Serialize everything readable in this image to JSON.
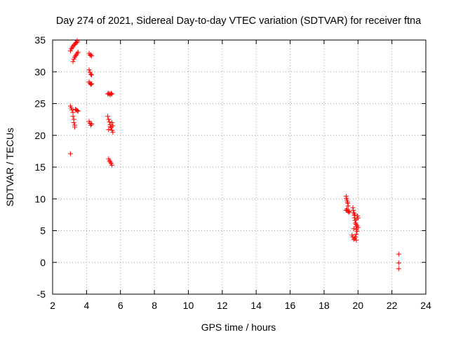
{
  "chart_data": {
    "type": "scatter",
    "title": "Day 274 of 2021, Sidereal Day-to-day VTEC variation (SDTVAR) for receiver ftna",
    "xlabel": "GPS time / hours",
    "ylabel": "SDTVAR / TECUs",
    "xlim": [
      2,
      24
    ],
    "ylim": [
      -5,
      35
    ],
    "x_ticks": [
      2,
      4,
      6,
      8,
      10,
      12,
      14,
      16,
      18,
      20,
      22,
      24
    ],
    "y_ticks": [
      -5,
      0,
      5,
      10,
      15,
      20,
      25,
      30,
      35
    ],
    "x_tick_labels": [
      "2",
      "4",
      "6",
      "8",
      "10",
      "12",
      "14",
      "16",
      "18",
      "20",
      "22",
      "24"
    ],
    "y_tick_labels": [
      "-5",
      "0",
      "5",
      "10",
      "15",
      "20",
      "25",
      "30",
      "35"
    ],
    "grid": true,
    "marker": "+",
    "marker_color": "#ff0000",
    "series": [
      {
        "name": "SDTVAR",
        "points": [
          [
            3.05,
            17.1
          ],
          [
            3.05,
            24.6
          ],
          [
            3.1,
            24.3
          ],
          [
            3.15,
            24.0
          ],
          [
            3.2,
            23.6
          ],
          [
            3.2,
            23.0
          ],
          [
            3.25,
            22.5
          ],
          [
            3.25,
            22.0
          ],
          [
            3.3,
            21.6
          ],
          [
            3.3,
            21.3
          ],
          [
            3.35,
            24.1
          ],
          [
            3.4,
            24.0
          ],
          [
            3.45,
            23.9
          ],
          [
            3.5,
            23.8
          ],
          [
            3.05,
            33.3
          ],
          [
            3.1,
            33.6
          ],
          [
            3.15,
            33.8
          ],
          [
            3.2,
            34.0
          ],
          [
            3.25,
            34.2
          ],
          [
            3.3,
            34.3
          ],
          [
            3.35,
            34.5
          ],
          [
            3.4,
            34.6
          ],
          [
            3.45,
            34.9
          ],
          [
            3.45,
            34.7
          ],
          [
            3.2,
            31.6
          ],
          [
            3.25,
            32.0
          ],
          [
            3.3,
            32.3
          ],
          [
            3.35,
            32.5
          ],
          [
            3.4,
            32.7
          ],
          [
            3.45,
            32.9
          ],
          [
            3.5,
            33.1
          ],
          [
            4.15,
            32.9
          ],
          [
            4.2,
            32.6
          ],
          [
            4.25,
            32.7
          ],
          [
            4.3,
            32.5
          ],
          [
            4.15,
            30.3
          ],
          [
            4.2,
            29.9
          ],
          [
            4.25,
            29.6
          ],
          [
            4.3,
            29.5
          ],
          [
            4.15,
            28.4
          ],
          [
            4.2,
            28.2
          ],
          [
            4.25,
            28.0
          ],
          [
            4.3,
            28.1
          ],
          [
            4.15,
            22.2
          ],
          [
            4.2,
            21.9
          ],
          [
            4.25,
            21.6
          ],
          [
            4.3,
            21.8
          ],
          [
            5.25,
            26.5
          ],
          [
            5.3,
            26.6
          ],
          [
            5.35,
            26.5
          ],
          [
            5.4,
            26.4
          ],
          [
            5.45,
            26.6
          ],
          [
            5.5,
            26.5
          ],
          [
            5.25,
            23.0
          ],
          [
            5.3,
            22.5
          ],
          [
            5.35,
            22.1
          ],
          [
            5.4,
            21.7
          ],
          [
            5.45,
            21.2
          ],
          [
            5.5,
            20.8
          ],
          [
            5.55,
            20.5
          ],
          [
            5.3,
            20.9
          ],
          [
            5.4,
            21.4
          ],
          [
            5.5,
            22.0
          ],
          [
            5.55,
            21.5
          ],
          [
            5.3,
            16.3
          ],
          [
            5.35,
            16.0
          ],
          [
            5.4,
            15.8
          ],
          [
            5.45,
            15.6
          ],
          [
            5.5,
            15.3
          ],
          [
            19.3,
            10.4
          ],
          [
            19.32,
            10.1
          ],
          [
            19.35,
            9.8
          ],
          [
            19.38,
            9.5
          ],
          [
            19.4,
            9.3
          ],
          [
            19.42,
            8.9
          ],
          [
            19.35,
            8.4
          ],
          [
            19.4,
            8.1
          ],
          [
            19.45,
            7.9
          ],
          [
            19.5,
            8.0
          ],
          [
            19.3,
            8.2
          ],
          [
            19.7,
            8.6
          ],
          [
            19.72,
            8.2
          ],
          [
            19.75,
            7.8
          ],
          [
            19.78,
            7.4
          ],
          [
            19.8,
            7.0
          ],
          [
            19.82,
            6.6
          ],
          [
            19.85,
            6.2
          ],
          [
            19.88,
            6.0
          ],
          [
            19.9,
            5.6
          ],
          [
            19.92,
            5.2
          ],
          [
            19.95,
            4.9
          ],
          [
            19.97,
            7.3
          ],
          [
            20.0,
            7.0
          ],
          [
            19.9,
            4.4
          ],
          [
            19.85,
            4.0
          ],
          [
            19.8,
            3.8
          ],
          [
            19.75,
            3.6
          ],
          [
            19.7,
            4.0
          ],
          [
            19.95,
            5.8
          ],
          [
            20.0,
            5.5
          ],
          [
            19.8,
            7.6
          ],
          [
            19.75,
            5.3
          ],
          [
            19.9,
            6.8
          ],
          [
            19.65,
            4.3
          ],
          [
            19.9,
            3.5
          ],
          [
            22.4,
            1.3
          ],
          [
            22.4,
            -0.1
          ],
          [
            22.4,
            -1.0
          ]
        ]
      }
    ]
  }
}
